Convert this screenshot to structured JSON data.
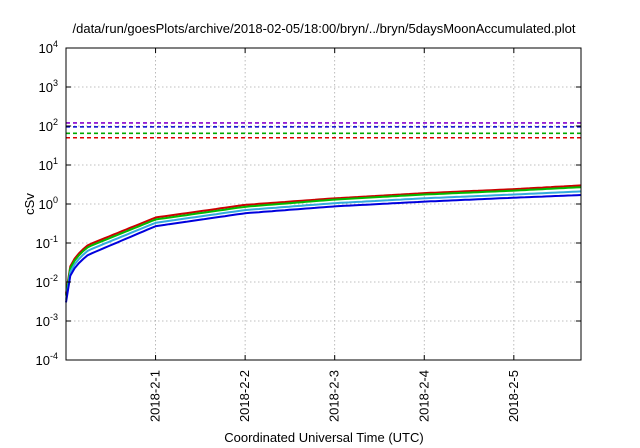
{
  "chart_data": {
    "type": "line",
    "title": "/data/run/goesPlots/archive/2018-02-05/18:00/bryn/../bryn/5daysMoonAccumulated.plot",
    "xlabel": "Coordinated Universal Time (UTC)",
    "ylabel": "cSv",
    "x_scale": "time",
    "y_scale": "log",
    "xlim": [
      "2018-01-31 00:00",
      "2018-02-05 18:00"
    ],
    "ylim": [
      0.0001,
      10000
    ],
    "grid": true,
    "x_ticks": [
      {
        "x": "2018-02-01 00:00",
        "label": "2018-2-1"
      },
      {
        "x": "2018-02-02 00:00",
        "label": "2018-2-2"
      },
      {
        "x": "2018-02-03 00:00",
        "label": "2018-2-3"
      },
      {
        "x": "2018-02-04 00:00",
        "label": "2018-2-4"
      },
      {
        "x": "2018-02-05 00:00",
        "label": "2018-2-5"
      }
    ],
    "y_ticks": [
      {
        "y": 0.0001,
        "base": "10",
        "exp": "-4"
      },
      {
        "y": 0.001,
        "base": "10",
        "exp": "-3"
      },
      {
        "y": 0.01,
        "base": "10",
        "exp": "-2"
      },
      {
        "y": 0.1,
        "base": "10",
        "exp": "-1"
      },
      {
        "y": 1,
        "base": "10",
        "exp": "0"
      },
      {
        "y": 10,
        "base": "10",
        "exp": "1"
      },
      {
        "y": 100,
        "base": "10",
        "exp": "2"
      },
      {
        "y": 1000,
        "base": "10",
        "exp": "3"
      },
      {
        "y": 10000,
        "base": "10",
        "exp": "4"
      }
    ],
    "x": [
      "2018-01-31 00:00",
      "2018-01-31 06:00",
      "2018-02-01 00:00",
      "2018-02-02 00:00",
      "2018-02-03 00:00",
      "2018-02-04 00:00",
      "2018-02-05 00:00",
      "2018-02-05 18:00"
    ],
    "series": [
      {
        "color": "#cc0000",
        "style": "solid",
        "values": [
          0.005,
          0.09,
          0.45,
          0.95,
          1.4,
          1.9,
          2.4,
          3.0
        ]
      },
      {
        "color": "#00bb00",
        "style": "solid",
        "values": [
          0.0045,
          0.08,
          0.4,
          0.85,
          1.3,
          1.75,
          2.2,
          2.7
        ]
      },
      {
        "color": "#33aadd",
        "style": "solid",
        "values": [
          0.0035,
          0.065,
          0.33,
          0.7,
          1.05,
          1.4,
          1.75,
          2.1
        ]
      },
      {
        "color": "#0000dd",
        "style": "solid",
        "values": [
          0.003,
          0.05,
          0.27,
          0.58,
          0.87,
          1.15,
          1.45,
          1.7
        ]
      },
      {
        "color": "#8800cc",
        "style": "dashed",
        "constant": 120
      },
      {
        "color": "#0000cc",
        "style": "dashed",
        "constant": 95
      },
      {
        "color": "#00aa00",
        "style": "dashed",
        "constant": 65
      },
      {
        "color": "#dd0000",
        "style": "dashed",
        "constant": 50
      }
    ]
  }
}
